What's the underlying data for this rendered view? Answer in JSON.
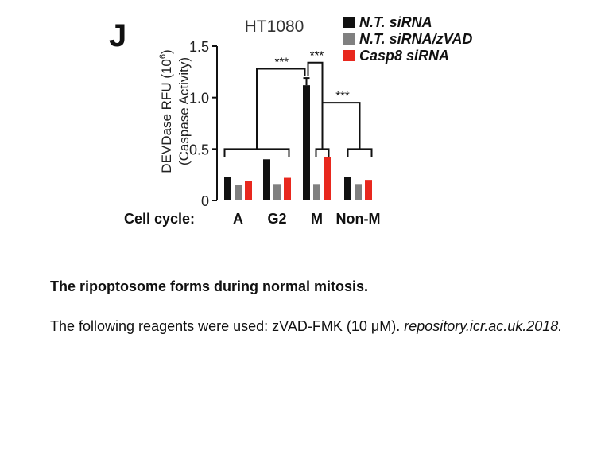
{
  "panel_label": "J",
  "chart_data": {
    "type": "bar",
    "title": "HT1080",
    "xlabel": "Cell cycle:",
    "ylabel_line1": "DEVDase RFU (10",
    "ylabel_exp": "6",
    "ylabel_close": ")",
    "ylabel_line2": "(Caspase Activity)",
    "ylim": [
      0,
      1.5
    ],
    "yticks": [
      {
        "value": 0,
        "label": "0"
      },
      {
        "value": 0.5,
        "label": "0.5"
      },
      {
        "value": 1.0,
        "label": "1.0"
      },
      {
        "value": 1.5,
        "label": "1.5"
      }
    ],
    "categories": [
      "A",
      "G2",
      "M",
      "Non-M"
    ],
    "series": [
      {
        "name": "N.T. siRNA",
        "color": "#111111",
        "values": [
          0.23,
          0.4,
          1.12,
          0.23
        ],
        "errors": [
          0,
          0,
          0.07,
          0
        ]
      },
      {
        "name": "N.T. siRNA/zVAD",
        "color": "#808080",
        "values": [
          0.15,
          0.16,
          0.16,
          0.16
        ],
        "errors": [
          0,
          0,
          0,
          0
        ]
      },
      {
        "name": "Casp8 siRNA",
        "color": "#e8281e",
        "values": [
          0.19,
          0.22,
          0.42,
          0.2
        ],
        "errors": [
          0,
          0,
          0,
          0
        ]
      }
    ],
    "significance": [
      "***",
      "***",
      "***"
    ],
    "legend_position": "top-right",
    "grid": false
  },
  "caption": {
    "title": "The ripoptosome forms during normal mitosis.",
    "body": "The following reagents were used: zVAD-FMK (10 μM). ",
    "link": "repository.icr.ac.uk.2018."
  }
}
